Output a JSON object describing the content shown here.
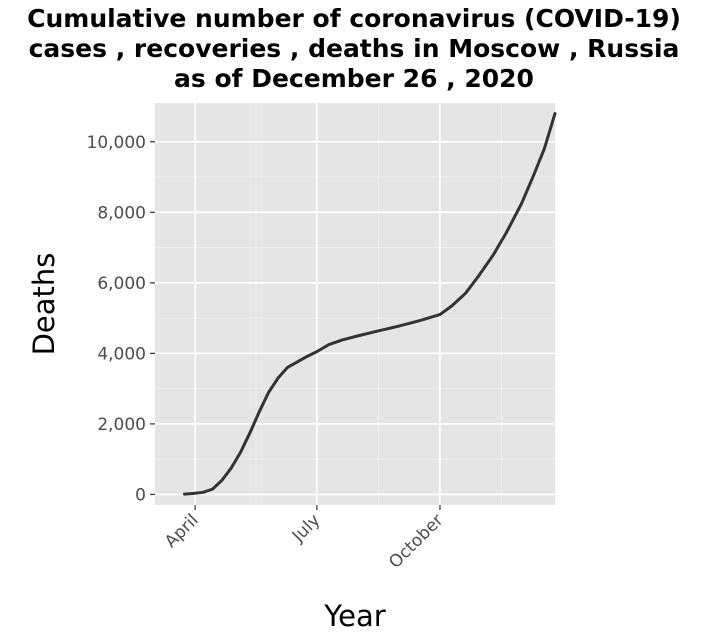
{
  "title_lines": [
    "Cumulative number of coronavirus (COVID-19)",
    "cases , recoveries , deaths in Moscow , Russia",
    "as of December 26 , 2020"
  ],
  "chart_data": {
    "type": "line",
    "title": "Cumulative number of coronavirus (COVID-19) cases , recoveries , deaths in Moscow , Russia as of December 26 , 2020",
    "xlabel": "Year",
    "ylabel": "Deaths",
    "x_ticks": [
      {
        "label": "April",
        "date": "2020-04-01"
      },
      {
        "label": "July",
        "date": "2020-07-01"
      },
      {
        "label": "October",
        "date": "2020-10-01"
      }
    ],
    "y_ticks": [
      0,
      2000,
      4000,
      6000,
      8000,
      10000
    ],
    "y_tick_labels": [
      "0",
      "2,000",
      "4,000",
      "6,000",
      "8,000",
      "10,000"
    ],
    "xlim": [
      "2020-03-02",
      "2020-12-26"
    ],
    "ylim": [
      -300,
      11100
    ],
    "grid": true,
    "series": [
      {
        "color": "#333333",
        "points": [
          {
            "x": "2020-03-24",
            "y": 10
          },
          {
            "x": "2020-03-31",
            "y": 30
          },
          {
            "x": "2020-04-07",
            "y": 60
          },
          {
            "x": "2020-04-14",
            "y": 150
          },
          {
            "x": "2020-04-21",
            "y": 400
          },
          {
            "x": "2020-04-28",
            "y": 750
          },
          {
            "x": "2020-05-05",
            "y": 1200
          },
          {
            "x": "2020-05-12",
            "y": 1750
          },
          {
            "x": "2020-05-19",
            "y": 2350
          },
          {
            "x": "2020-05-26",
            "y": 2900
          },
          {
            "x": "2020-06-02",
            "y": 3300
          },
          {
            "x": "2020-06-09",
            "y": 3600
          },
          {
            "x": "2020-06-16",
            "y": 3750
          },
          {
            "x": "2020-06-23",
            "y": 3900
          },
          {
            "x": "2020-07-01",
            "y": 4050
          },
          {
            "x": "2020-07-10",
            "y": 4250
          },
          {
            "x": "2020-07-20",
            "y": 4380
          },
          {
            "x": "2020-08-01",
            "y": 4500
          },
          {
            "x": "2020-08-15",
            "y": 4630
          },
          {
            "x": "2020-09-01",
            "y": 4780
          },
          {
            "x": "2020-09-15",
            "y": 4920
          },
          {
            "x": "2020-10-01",
            "y": 5100
          },
          {
            "x": "2020-10-10",
            "y": 5350
          },
          {
            "x": "2020-10-20",
            "y": 5700
          },
          {
            "x": "2020-10-30",
            "y": 6200
          },
          {
            "x": "2020-11-10",
            "y": 6800
          },
          {
            "x": "2020-11-20",
            "y": 7450
          },
          {
            "x": "2020-12-01",
            "y": 8250
          },
          {
            "x": "2020-12-10",
            "y": 9050
          },
          {
            "x": "2020-12-18",
            "y": 9800
          },
          {
            "x": "2020-12-26",
            "y": 10800
          }
        ]
      }
    ]
  }
}
